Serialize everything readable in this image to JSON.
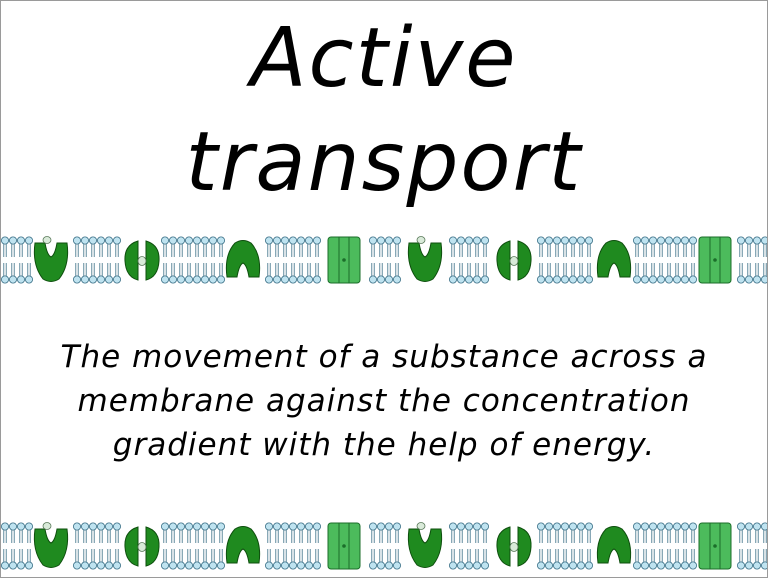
{
  "slide": {
    "title_line1": "Active",
    "title_line2": "transport",
    "definition": "The movement of a substance across a membrane against the concentration gradient with the help of energy."
  },
  "membrane": {
    "phospholipid_head_color": "#bfe3f0",
    "phospholipid_stroke_color": "#3a6f86",
    "protein_dark_green": "#1f8a1f",
    "protein_light_green": "#4cbb5c",
    "protein_types": [
      "carrier-open-top-icon",
      "carrier-side-icon",
      "carrier-open-bottom-icon",
      "channel-protein-icon"
    ]
  }
}
